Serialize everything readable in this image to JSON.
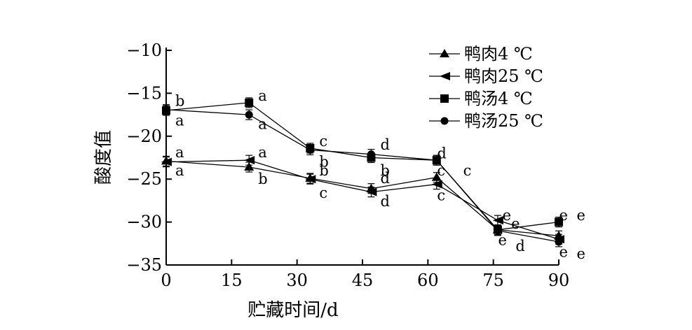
{
  "chart_data": {
    "type": "line",
    "xlabel": "贮藏时间/d",
    "ylabel": "酸度值",
    "x": [
      0,
      19,
      33,
      47,
      62,
      76,
      90
    ],
    "xticks": [
      0,
      15,
      30,
      45,
      60,
      75,
      90
    ],
    "xlim": [
      0,
      90
    ],
    "yticks": [
      -10,
      -15,
      -20,
      -25,
      -30,
      -35
    ],
    "ytick_labels": [
      "−10",
      "−15",
      "−20",
      "−25",
      "−30",
      "−35"
    ],
    "ylim": [
      -35,
      -10
    ],
    "grid": false,
    "legend_position": "top-right",
    "series": [
      {
        "name": "鸭肉4 ℃",
        "marker": "triangle",
        "values": [
          -22.9,
          -23.6,
          -24.9,
          -26.1,
          -24.8,
          -30.9,
          -31.6
        ]
      },
      {
        "name": "鸭肉25 ℃",
        "marker": "diamond",
        "values": [
          -23.0,
          -22.8,
          -25.0,
          -26.5,
          -25.6,
          -29.8,
          -32.0
        ]
      },
      {
        "name": "鸭汤4 ℃",
        "marker": "square",
        "values": [
          -17.0,
          -16.1,
          -21.4,
          -22.5,
          -22.8,
          -30.9,
          -30.0
        ]
      },
      {
        "name": "鸭汤25 ℃",
        "marker": "circle",
        "values": [
          -16.9,
          -17.5,
          -21.6,
          -22.1,
          -22.8,
          -31.0,
          -32.3
        ]
      }
    ],
    "significance_letters": [
      {
        "text": "b",
        "x": 0,
        "y": -15.9
      },
      {
        "text": "a",
        "x": 0,
        "y": -18.2
      },
      {
        "text": "a",
        "x": 0,
        "y": -21.9
      },
      {
        "text": "a",
        "x": 0,
        "y": -24.0
      },
      {
        "text": "a",
        "x": 19,
        "y": -15.3
      },
      {
        "text": "a",
        "x": 19,
        "y": -18.6
      },
      {
        "text": "a",
        "x": 19,
        "y": -21.9
      },
      {
        "text": "b",
        "x": 19,
        "y": -25.0
      },
      {
        "text": "c",
        "x": 33,
        "y": -20.6
      },
      {
        "text": "b",
        "x": 33,
        "y": -23.0
      },
      {
        "text": "b",
        "x": 33,
        "y": -24.0
      },
      {
        "text": "c",
        "x": 33,
        "y": -26.6
      },
      {
        "text": "d",
        "x": 47,
        "y": -21.0
      },
      {
        "text": "b",
        "x": 47,
        "y": -24.0
      },
      {
        "text": "d",
        "x": 47,
        "y": -24.9
      },
      {
        "text": "d",
        "x": 47,
        "y": -27.6
      },
      {
        "text": "d",
        "x": 60,
        "y": -22.0
      },
      {
        "text": "c",
        "x": 60,
        "y": -24.0
      },
      {
        "text": "c",
        "x": 60,
        "y": -26.9
      },
      {
        "text": "c",
        "x": 66,
        "y": -24.0
      },
      {
        "text": "e",
        "x": 75,
        "y": -29.2
      },
      {
        "text": "e",
        "x": 77,
        "y": -30.2
      },
      {
        "text": "e",
        "x": 74,
        "y": -32.1
      },
      {
        "text": "d",
        "x": 78,
        "y": -32.8
      },
      {
        "text": "e",
        "x": 88,
        "y": -29.2
      },
      {
        "text": "e",
        "x": 92,
        "y": -29.2
      },
      {
        "text": "e",
        "x": 88,
        "y": -33.5
      },
      {
        "text": "e",
        "x": 92,
        "y": -33.7
      }
    ]
  }
}
